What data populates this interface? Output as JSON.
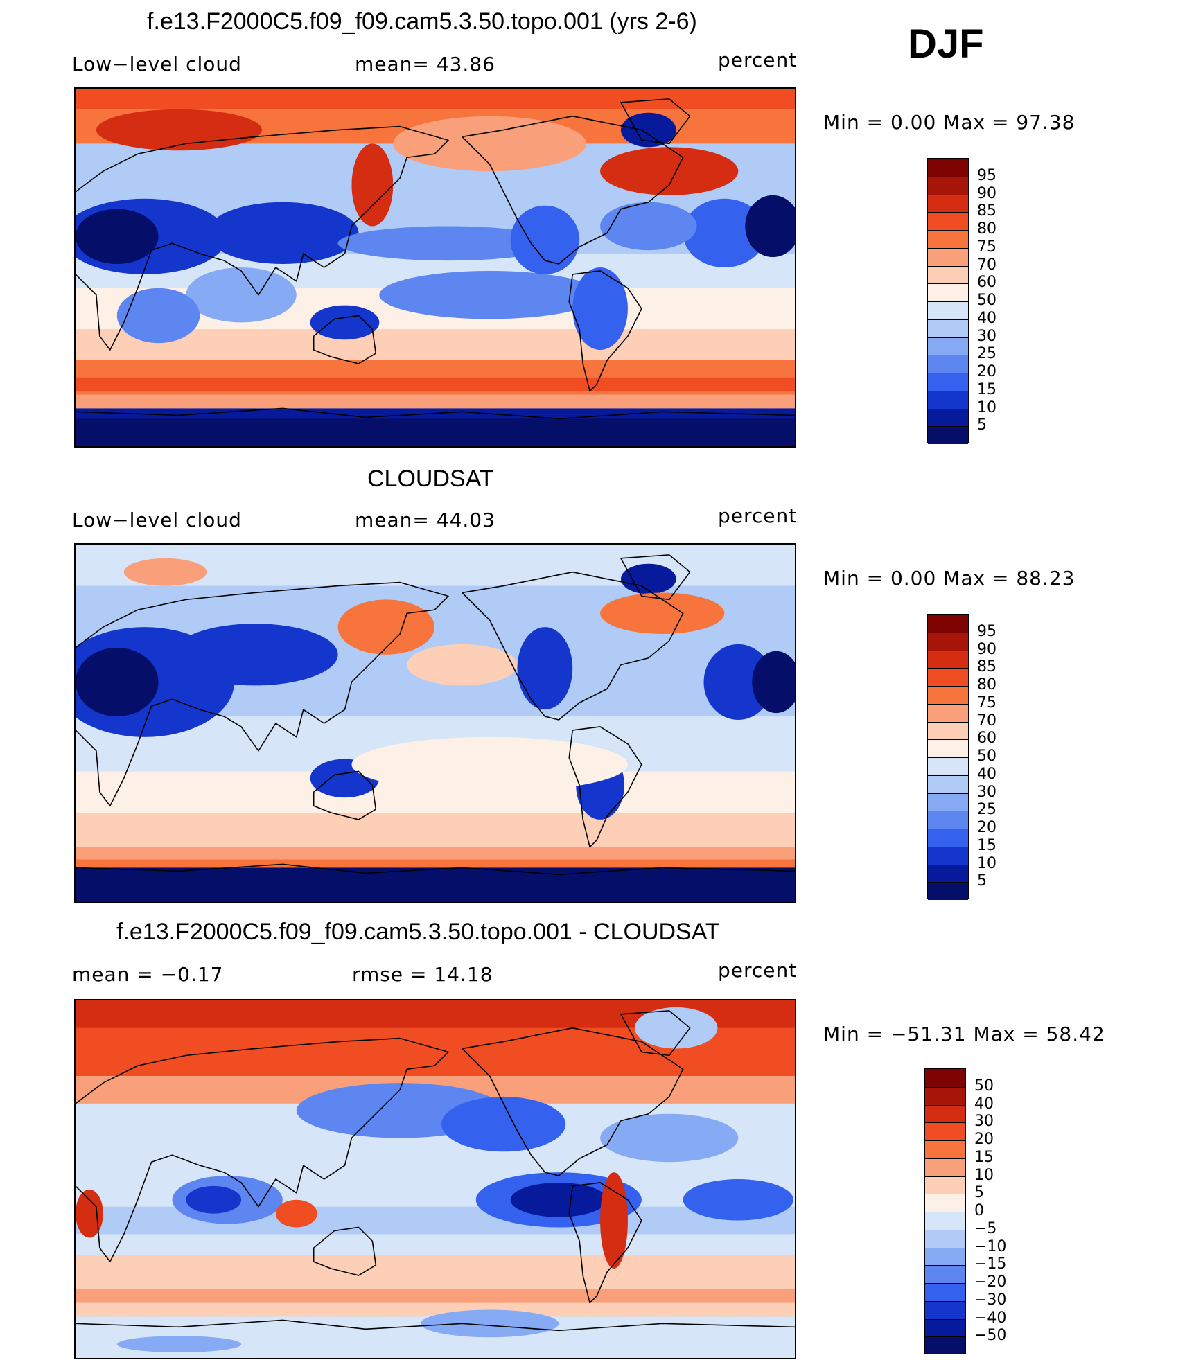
{
  "season": "DJF",
  "colors": {
    "ocean_blend": [
      "#08127a",
      "#0d2fbf",
      "#2658f0",
      "#4f82f5",
      "#86aef6",
      "#bcd2f7",
      "#dce9f8",
      "#fde9dc",
      "#fcc4a6",
      "#f99a72",
      "#f36d44",
      "#e24520",
      "#c8250d",
      "#9a0b04"
    ],
    "coastline": "#000000"
  },
  "panels": [
    {
      "id": "model",
      "title": "f.e13.F2000C5.f09_f09.cam5.3.50.topo.001 (yrs 2-6)",
      "left_label": "Low−level cloud",
      "center_label": "mean=   43.86",
      "units": "percent",
      "minmax": "Min  =     0.00  Max  =    97.38",
      "colorbar": {
        "ticks": [
          "95",
          "90",
          "85",
          "80",
          "75",
          "70",
          "60",
          "50",
          "40",
          "30",
          "25",
          "20",
          "15",
          "10",
          "5"
        ],
        "colors": [
          "#7d0403",
          "#a8160a",
          "#d52d12",
          "#f04d22",
          "#f7743c",
          "#f9a07a",
          "#fdcfb6",
          "#fdf0e6",
          "#d6e6f8",
          "#b0ccf6",
          "#86aaf4",
          "#5d86f1",
          "#3461ee",
          "#1436cc",
          "#081a9c",
          "#050f6a"
        ]
      },
      "map_style": "model"
    },
    {
      "id": "obs",
      "title": "CLOUDSAT",
      "left_label": "Low−level cloud",
      "center_label": "mean=   44.03",
      "units": "percent",
      "minmax": "Min  =     0.00  Max  =    88.23",
      "colorbar": {
        "ticks": [
          "95",
          "90",
          "85",
          "80",
          "75",
          "70",
          "60",
          "50",
          "40",
          "30",
          "25",
          "20",
          "15",
          "10",
          "5"
        ],
        "colors": [
          "#7d0403",
          "#a8160a",
          "#d52d12",
          "#f04d22",
          "#f7743c",
          "#f9a07a",
          "#fdcfb6",
          "#fdf0e6",
          "#d6e6f8",
          "#b0ccf6",
          "#86aaf4",
          "#5d86f1",
          "#3461ee",
          "#1436cc",
          "#081a9c",
          "#050f6a"
        ]
      },
      "map_style": "obs"
    },
    {
      "id": "diff",
      "title": "f.e13.F2000C5.f09_f09.cam5.3.50.topo.001 - CLOUDSAT",
      "left_label": "mean  =    −0.17",
      "center_label": "rmse  =    14.18",
      "units": "percent",
      "minmax": "Min  =  −51.31  Max  =    58.42",
      "colorbar": {
        "ticks": [
          "50",
          "40",
          "30",
          "20",
          "15",
          "10",
          "5",
          "0",
          "−5",
          "−10",
          "−15",
          "−20",
          "−30",
          "−40",
          "−50"
        ],
        "colors": [
          "#7d0403",
          "#a8160a",
          "#d52d12",
          "#f04d22",
          "#f7743c",
          "#f9a07a",
          "#fdcfb6",
          "#fdf0e6",
          "#d6e6f8",
          "#b0ccf6",
          "#86aaf4",
          "#5d86f1",
          "#3461ee",
          "#1436cc",
          "#081a9c",
          "#050f6a"
        ]
      },
      "map_style": "diff"
    }
  ]
}
